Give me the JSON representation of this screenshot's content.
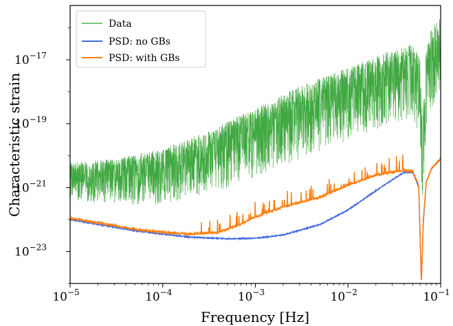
{
  "chart_data": {
    "type": "line",
    "title": "",
    "xlabel": "Frequency [Hz]",
    "ylabel": "Characteristic strain",
    "x_scale": "log",
    "y_scale": "log",
    "xlim": [
      1e-05,
      0.1
    ],
    "ylim": [
      1e-24,
      5e-16
    ],
    "grid": false,
    "legend_position": "top-left",
    "x_ticks": [
      {
        "base": "10",
        "exp": "−5",
        "value": 1e-05
      },
      {
        "base": "10",
        "exp": "−4",
        "value": 0.0001
      },
      {
        "base": "10",
        "exp": "−3",
        "value": 0.001
      },
      {
        "base": "10",
        "exp": "−2",
        "value": 0.01
      },
      {
        "base": "10",
        "exp": "−1",
        "value": 0.1
      }
    ],
    "y_ticks": [
      {
        "base": "10",
        "exp": "−23",
        "value": 1e-23
      },
      {
        "base": "10",
        "exp": "−21",
        "value": 1e-21
      },
      {
        "base": "10",
        "exp": "−19",
        "value": 1e-19
      },
      {
        "base": "10",
        "exp": "−17",
        "value": 1e-17
      }
    ],
    "series": [
      {
        "name": "Data",
        "color": "#2ca02c",
        "style": "noisy-band",
        "x": [
          1e-05,
          3e-05,
          0.0001,
          0.0003,
          0.001,
          0.003,
          0.01,
          0.03,
          0.05,
          0.06,
          0.063,
          0.07,
          0.08,
          0.1
        ],
        "upper": [
          6e-21,
          8e-21,
          1.6e-20,
          6e-20,
          3e-19,
          1.5e-18,
          6e-18,
          2e-17,
          3e-17,
          1e-17,
          3e-19,
          2e-17,
          1e-16,
          2.5e-16
        ],
        "center": [
          2e-21,
          2.5e-21,
          4e-21,
          1.2e-20,
          5e-20,
          2e-19,
          8e-19,
          3e-18,
          4e-18,
          8e-19,
          2e-21,
          2e-18,
          1e-17,
          3e-17
        ],
        "lower": [
          4e-22,
          3e-22,
          3e-22,
          6e-22,
          2e-21,
          8e-21,
          3e-20,
          1e-19,
          1.5e-19,
          3e-20,
          2e-22,
          6e-20,
          3e-19,
          1e-18
        ]
      },
      {
        "name": "PSD: no GBs",
        "color": "#4169e1",
        "style": "line",
        "x": [
          1e-05,
          2e-05,
          5e-05,
          0.0001,
          0.0002,
          0.0005,
          0.001,
          0.002,
          0.005,
          0.01,
          0.02,
          0.04,
          0.05,
          0.058,
          0.062,
          0.065,
          0.07,
          0.08,
          0.1
        ],
        "y": [
          1e-22,
          7e-23,
          4.5e-23,
          3.5e-23,
          2.8e-23,
          2.5e-23,
          2.6e-23,
          3.3e-23,
          7e-23,
          2e-22,
          8e-22,
          3e-21,
          3e-21,
          1e-21,
          1e-24,
          8e-23,
          1.5e-21,
          4e-21,
          8e-21
        ]
      },
      {
        "name": "PSD: with GBs",
        "color": "#ff7f0e",
        "style": "line",
        "x": [
          1e-05,
          2e-05,
          5e-05,
          0.0001,
          0.0002,
          0.0004,
          0.0006,
          0.001,
          0.002,
          0.005,
          0.01,
          0.02,
          0.04,
          0.05,
          0.058,
          0.062,
          0.065,
          0.07,
          0.08,
          0.1
        ],
        "y": [
          1.1e-22,
          8e-23,
          5e-23,
          4e-23,
          3.5e-23,
          4e-23,
          6e-23,
          1.2e-22,
          2.5e-22,
          5e-22,
          1.2e-21,
          2.5e-21,
          3.5e-21,
          3.2e-21,
          1.2e-21,
          1e-24,
          1e-22,
          1.5e-21,
          4e-21,
          8e-21
        ]
      }
    ]
  }
}
